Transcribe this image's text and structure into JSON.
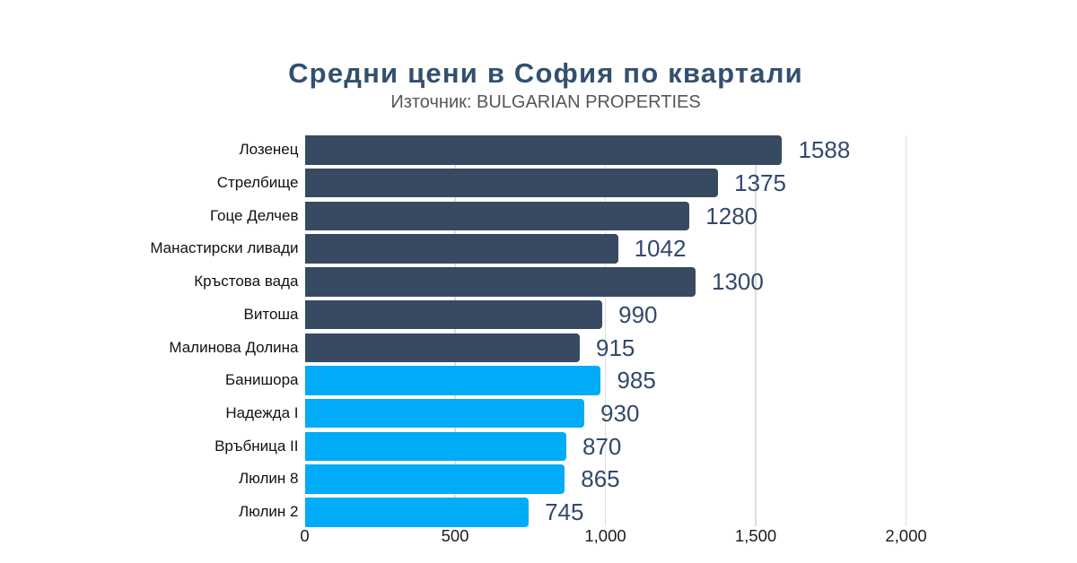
{
  "chart_data": {
    "type": "bar",
    "orientation": "horizontal",
    "title": "Средни цени в София по квартали",
    "subtitle": "Източник: BULGARIAN PROPERTIES",
    "categories": [
      "Лозенец",
      "Стрелбище",
      "Гоце Делчев",
      "Манастирски ливади",
      "Кръстова вада",
      "Витоша",
      "Малинова Долина",
      "Банишора",
      "Надежда I",
      "Връбница II",
      "Люлин 8",
      "Люлин 2"
    ],
    "values": [
      1588,
      1375,
      1280,
      1042,
      1300,
      990,
      915,
      985,
      930,
      870,
      865,
      745
    ],
    "value_labels": [
      "1588",
      "1375",
      "1280",
      "1042",
      "1300",
      "990",
      "915",
      "985",
      "930",
      "870",
      "865",
      "745"
    ],
    "groups": [
      "dark",
      "dark",
      "dark",
      "dark",
      "dark",
      "dark",
      "dark",
      "light",
      "light",
      "light",
      "light",
      "light"
    ],
    "colors": {
      "dark": "#374a62",
      "light": "#00abf8"
    },
    "xlim": [
      0,
      2000
    ],
    "x_ticks": [
      {
        "value": 0,
        "label": "0"
      },
      {
        "value": 500,
        "label": "500"
      },
      {
        "value": 1000,
        "label": "1,000"
      },
      {
        "value": 1500,
        "label": "1,500"
      },
      {
        "value": 2000,
        "label": "2,000"
      }
    ],
    "grid": true,
    "legend": false,
    "xlabel": "",
    "ylabel": ""
  }
}
